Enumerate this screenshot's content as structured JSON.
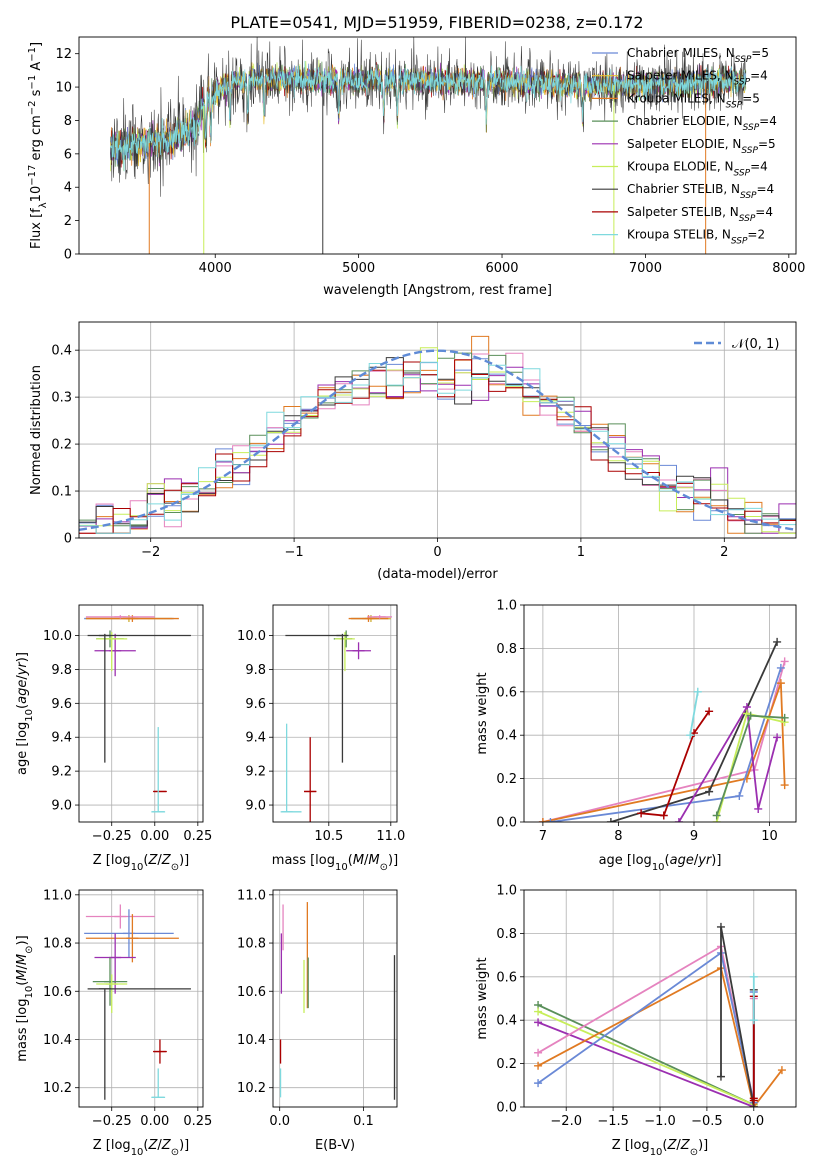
{
  "title": "PLATE=0541, MJD=51959, FIBERID=0238, z=0.172",
  "colors": {
    "Chabrier MILES": "#6a89d6",
    "Salpeter MILES": "#e8c034",
    "Kroupa MILES": "#e07a22",
    "Chabrier ELODIE": "#5a8f5a",
    "Salpeter ELODIE": "#9b2fb0",
    "Kroupa ELODIE": "#c7ee5a",
    "Chabrier STELIB": "#3a3a3a",
    "Salpeter STELIB": "#aa0000",
    "Kroupa STELIB": "#7fd9de",
    "pink": "#e583bf",
    "normal": "#5f8bd6"
  },
  "legend_top": [
    {
      "pre": "Chabrier MILES, N",
      "sub": "SSP",
      "post": "=5"
    },
    {
      "pre": "Salpeter MILES, N",
      "sub": "SSP",
      "post": "=4"
    },
    {
      "pre": "Kroupa MILES, N",
      "sub": "SSP",
      "post": "=5"
    },
    {
      "pre": "Chabrier ELODIE, N",
      "sub": "SSP",
      "post": "=4"
    },
    {
      "pre": "Salpeter ELODIE, N",
      "sub": "SSP",
      "post": "=5"
    },
    {
      "pre": "Kroupa ELODIE, N",
      "sub": "SSP",
      "post": "=4"
    },
    {
      "pre": "Chabrier STELIB, N",
      "sub": "SSP",
      "post": "=4"
    },
    {
      "pre": "Salpeter STELIB, N",
      "sub": "SSP",
      "post": "=4"
    },
    {
      "pre": "Kroupa STELIB, N",
      "sub": "SSP",
      "post": "=2"
    }
  ],
  "chart_data": [
    {
      "id": "spectrum",
      "type": "line",
      "title": "PLATE=0541, MJD=51959, FIBERID=0238, z=0.172",
      "xlabel": "wavelength [Angstrom, rest frame]",
      "ylabel_parts": [
        "Flux [f",
        "λ",
        "10",
        "−17",
        " erg cm",
        "−2",
        " s",
        "−1",
        " A",
        "−1",
        "]"
      ],
      "xlim": [
        3050,
        8050
      ],
      "ylim": [
        0,
        13
      ],
      "xticks": [
        4000,
        5000,
        6000,
        7000,
        8000
      ],
      "yticks": [
        0,
        2,
        4,
        6,
        8,
        10,
        12
      ],
      "grid": false,
      "legend_position": "top-right",
      "x_range_data": [
        3270,
        7700
      ],
      "continuum": [
        [
          3270,
          6.3
        ],
        [
          3500,
          6.6
        ],
        [
          3700,
          6.9
        ],
        [
          3850,
          7.6
        ],
        [
          3950,
          9.4
        ],
        [
          4100,
          10.3
        ],
        [
          4300,
          10.5
        ],
        [
          4600,
          10.4
        ],
        [
          5000,
          10.4
        ],
        [
          5500,
          10.4
        ],
        [
          6000,
          10.3
        ],
        [
          6500,
          10.1
        ],
        [
          7000,
          10.1
        ],
        [
          7500,
          10.3
        ],
        [
          7700,
          10.4
        ]
      ]
    },
    {
      "id": "residuals",
      "type": "bar",
      "xlabel": "(data-model)/error",
      "ylabel": "Normed distribution",
      "xlim": [
        -2.5,
        2.5
      ],
      "ylim": [
        0,
        0.46
      ],
      "xticks": [
        -2,
        -1,
        0,
        1,
        2
      ],
      "yticks": [
        0,
        0.1,
        0.2,
        0.3,
        0.4
      ],
      "grid": true,
      "legend": "𝒩(0, 1)",
      "legend_position": "top-right",
      "bins": 42
    },
    {
      "id": "age-vs-Z",
      "type": "scatter",
      "xlabel": "Z [log10(Z/Z⊙)]",
      "ylabel": "age  [log10(age/yr)]",
      "xlim": [
        -0.44,
        0.28
      ],
      "ylim": [
        8.9,
        10.18
      ],
      "xticks": [
        -0.25,
        0.0,
        0.25
      ],
      "xticklabels": [
        "−0.25",
        "0.00",
        "0.25"
      ],
      "yticks": [
        9.0,
        9.2,
        9.4,
        9.6,
        9.8,
        10.0
      ],
      "yticklabels": [
        "9.0",
        "9.2",
        "9.4",
        "9.6",
        "9.8",
        "10.0"
      ],
      "grid": true,
      "points": [
        {
          "model": "Chabrier MILES",
          "x": -0.15,
          "y": 10.1,
          "xe": [
            0.26,
            0.26
          ],
          "ye": [
            0.02,
            0.02
          ]
        },
        {
          "model": "Salpeter MILES",
          "x": -0.15,
          "y": 10.1,
          "xe": [
            0.25,
            0.25
          ],
          "ye": [
            0.02,
            0.02
          ]
        },
        {
          "model": "Kroupa MILES",
          "x": -0.13,
          "y": 10.1,
          "xe": [
            0.27,
            0.27
          ],
          "ye": [
            0.02,
            0.02
          ]
        },
        {
          "model": "Chabrier ELODIE",
          "x": -0.26,
          "y": 9.98,
          "xe": [
            0.08,
            0.08
          ],
          "ye": [
            0.05,
            0.05
          ]
        },
        {
          "model": "Salpeter ELODIE",
          "x": -0.23,
          "y": 9.91,
          "xe": [
            0.12,
            0.12
          ],
          "ye": [
            0.15,
            0.1
          ]
        },
        {
          "model": "Kroupa ELODIE",
          "x": -0.25,
          "y": 9.98,
          "xe": [
            0.09,
            0.09
          ],
          "ye": [
            0.19,
            0.04
          ]
        },
        {
          "model": "Chabrier STELIB",
          "x": -0.29,
          "y": 10.0,
          "xe": [
            0.1,
            0.5
          ],
          "ye": [
            0.75,
            0.01
          ]
        },
        {
          "model": "Salpeter STELIB",
          "x": 0.03,
          "y": 9.08,
          "xe": [
            0.04,
            0.04
          ],
          "ye": [
            0.0,
            0.0
          ]
        },
        {
          "model": "Kroupa STELIB",
          "x": 0.02,
          "y": 8.96,
          "xe": [
            0.04,
            0.04
          ],
          "ye": [
            0.0,
            0.5
          ]
        },
        {
          "model": "pink",
          "x": -0.2,
          "y": 10.11,
          "xe": [
            0.2,
            0.2
          ],
          "ye": [
            0.01,
            0.01
          ]
        }
      ]
    },
    {
      "id": "age-vs-mass",
      "type": "scatter",
      "xlabel": "mass [log10(M/M⊙)]",
      "ylabel": "",
      "xlim": [
        10.05,
        11.05
      ],
      "ylim": [
        8.9,
        10.18
      ],
      "xticks": [
        10.0,
        10.5,
        11.0
      ],
      "xticklabels": [
        "10.0",
        "10.5",
        "11.0"
      ],
      "yticks": [
        9.0,
        9.2,
        9.4,
        9.6,
        9.8,
        10.0
      ],
      "yticklabels": [
        "9.0",
        "9.2",
        "9.4",
        "9.6",
        "9.8",
        "10.0"
      ],
      "grid": true,
      "points": [
        {
          "model": "Chabrier MILES",
          "x": 10.84,
          "y": 10.1,
          "xe": [
            0.16,
            0.16
          ],
          "ye": [
            0.02,
            0.02
          ]
        },
        {
          "model": "Salpeter MILES",
          "x": 10.84,
          "y": 10.1,
          "xe": [
            0.16,
            0.16
          ],
          "ye": [
            0.02,
            0.02
          ]
        },
        {
          "model": "Kroupa MILES",
          "x": 10.82,
          "y": 10.1,
          "xe": [
            0.16,
            0.16
          ],
          "ye": [
            0.02,
            0.02
          ]
        },
        {
          "model": "Chabrier ELODIE",
          "x": 10.64,
          "y": 9.98,
          "xe": [
            0.1,
            0.05
          ],
          "ye": [
            0.05,
            0.05
          ]
        },
        {
          "model": "Salpeter ELODIE",
          "x": 10.74,
          "y": 9.91,
          "xe": [
            0.1,
            0.1
          ],
          "ye": [
            0.05,
            0.05
          ]
        },
        {
          "model": "Kroupa ELODIE",
          "x": 10.63,
          "y": 9.98,
          "xe": [
            0.08,
            0.08
          ],
          "ye": [
            0.19,
            0.04
          ]
        },
        {
          "model": "Chabrier STELIB",
          "x": 10.61,
          "y": 10.0,
          "xe": [
            0.46,
            0.0
          ],
          "ye": [
            0.75,
            0.01
          ]
        },
        {
          "model": "Salpeter STELIB",
          "x": 10.35,
          "y": 9.08,
          "xe": [
            0.05,
            0.05
          ],
          "ye": [
            0.18,
            0.32
          ]
        },
        {
          "model": "Kroupa STELIB",
          "x": 10.16,
          "y": 8.96,
          "xe": [
            0.04,
            0.12
          ],
          "ye": [
            0.0,
            0.52
          ]
        },
        {
          "model": "pink",
          "x": 10.91,
          "y": 10.11,
          "xe": [
            0.1,
            0.1
          ],
          "ye": [
            0.01,
            0.01
          ]
        }
      ]
    },
    {
      "id": "weight-vs-age",
      "type": "line",
      "xlabel": "age  [log10(age/yr)]",
      "ylabel": "mass weight",
      "xlim": [
        6.75,
        10.35
      ],
      "ylim": [
        0,
        1.0
      ],
      "xticks": [
        7,
        8,
        9,
        10
      ],
      "yticks": [
        0,
        0.2,
        0.4,
        0.6,
        0.8,
        1.0
      ],
      "yticklabels": [
        "0.0",
        "0.2",
        "0.4",
        "0.6",
        "0.8",
        "1.0"
      ],
      "grid": true,
      "series": [
        {
          "model": "pink",
          "x": [
            7.0,
            9.8,
            10.2
          ],
          "y": [
            0.0,
            0.24,
            0.74
          ]
        },
        {
          "model": "Kroupa MILES",
          "x": [
            7.0,
            9.7,
            10.15,
            10.2
          ],
          "y": [
            0.0,
            0.2,
            0.64,
            0.17
          ]
        },
        {
          "model": "Chabrier MILES",
          "x": [
            7.1,
            9.6,
            10.15
          ],
          "y": [
            0.0,
            0.12,
            0.71
          ]
        },
        {
          "model": "Chabrier STELIB",
          "x": [
            7.9,
            9.2,
            10.1
          ],
          "y": [
            0.0,
            0.14,
            0.83
          ]
        },
        {
          "model": "Salpeter STELIB",
          "x": [
            8.3,
            8.6,
            9.0,
            9.2
          ],
          "y": [
            0.04,
            0.03,
            0.41,
            0.51
          ]
        },
        {
          "model": "Kroupa STELIB",
          "x": [
            8.95,
            9.05
          ],
          "y": [
            0.4,
            0.6
          ]
        },
        {
          "model": "Salpeter ELODIE",
          "x": [
            8.8,
            9.7,
            9.85,
            10.1
          ],
          "y": [
            0.0,
            0.53,
            0.06,
            0.39
          ]
        },
        {
          "model": "Kroupa ELODIE",
          "x": [
            9.3,
            9.7,
            10.2
          ],
          "y": [
            0.0,
            0.5,
            0.46
          ]
        },
        {
          "model": "Chabrier ELODIE",
          "x": [
            9.3,
            9.75,
            10.2
          ],
          "y": [
            0.03,
            0.49,
            0.48
          ]
        }
      ]
    },
    {
      "id": "mass-vs-Z",
      "type": "scatter",
      "xlabel": "Z [log10(Z/Z⊙)]",
      "ylabel": "mass [log10(M/M⊙)]",
      "xlim": [
        -0.44,
        0.28
      ],
      "ylim": [
        10.12,
        11.02
      ],
      "xticks": [
        -0.25,
        0.0,
        0.25
      ],
      "xticklabels": [
        "−0.25",
        "0.00",
        "0.25"
      ],
      "yticks": [
        10.2,
        10.4,
        10.6,
        10.8,
        11.0
      ],
      "yticklabels": [
        "10.2",
        "10.4",
        "10.6",
        "10.8",
        "11.0"
      ],
      "grid": true,
      "points": [
        {
          "model": "pink",
          "x": -0.2,
          "y": 10.91,
          "xe": [
            0.2,
            0.2
          ],
          "ye": [
            0.05,
            0.05
          ]
        },
        {
          "model": "Chabrier MILES",
          "x": -0.15,
          "y": 10.84,
          "xe": [
            0.26,
            0.26
          ],
          "ye": [
            0.1,
            0.1
          ]
        },
        {
          "model": "Kroupa MILES",
          "x": -0.13,
          "y": 10.82,
          "xe": [
            0.27,
            0.27
          ],
          "ye": [
            0.1,
            0.1
          ]
        },
        {
          "model": "Salpeter ELODIE",
          "x": -0.23,
          "y": 10.74,
          "xe": [
            0.12,
            0.12
          ],
          "ye": [
            0.15,
            0.1
          ]
        },
        {
          "model": "Chabrier ELODIE",
          "x": -0.26,
          "y": 10.64,
          "xe": [
            0.1,
            0.1
          ],
          "ye": [
            0.1,
            0.1
          ]
        },
        {
          "model": "Kroupa ELODIE",
          "x": -0.25,
          "y": 10.63,
          "xe": [
            0.09,
            0.09
          ],
          "ye": [
            0.12,
            0.04
          ]
        },
        {
          "model": "Chabrier STELIB",
          "x": -0.29,
          "y": 10.61,
          "xe": [
            0.1,
            0.5
          ],
          "ye": [
            0.46,
            0.0
          ]
        },
        {
          "model": "Salpeter STELIB",
          "x": 0.03,
          "y": 10.35,
          "xe": [
            0.04,
            0.04
          ],
          "ye": [
            0.05,
            0.05
          ]
        },
        {
          "model": "Kroupa STELIB",
          "x": 0.02,
          "y": 10.16,
          "xe": [
            0.04,
            0.04
          ],
          "ye": [
            0.0,
            0.12
          ]
        }
      ]
    },
    {
      "id": "mass-vs-EBV",
      "type": "scatter",
      "xlabel": "E(B-V)",
      "ylabel": "",
      "xlim": [
        -0.008,
        0.14
      ],
      "ylim": [
        10.12,
        11.02
      ],
      "xticks": [
        0.0,
        0.1
      ],
      "xticklabels": [
        "0.0",
        "0.1"
      ],
      "yticks": [
        10.2,
        10.4,
        10.6,
        10.8,
        11.0
      ],
      "yticklabels": [
        "10.2",
        "10.4",
        "10.6",
        "10.8",
        "11.0"
      ],
      "grid": true,
      "points": [
        {
          "model": "pink",
          "x": 0.004,
          "y": 10.91,
          "xe": [
            0,
            0
          ],
          "ye": [
            0.14,
            0.05
          ]
        },
        {
          "model": "Kroupa MILES",
          "x": 0.033,
          "y": 10.82,
          "xe": [
            0,
            0
          ],
          "ye": [
            0.29,
            0.15
          ]
        },
        {
          "model": "Salpeter ELODIE",
          "x": 0.002,
          "y": 10.74,
          "xe": [
            0,
            0
          ],
          "ye": [
            0.15,
            0.1
          ]
        },
        {
          "model": "Kroupa ELODIE",
          "x": 0.029,
          "y": 10.63,
          "xe": [
            0,
            0
          ],
          "ye": [
            0.12,
            0.1
          ]
        },
        {
          "model": "Chabrier ELODIE",
          "x": 0.034,
          "y": 10.64,
          "xe": [
            0,
            0
          ],
          "ye": [
            0.11,
            0.1
          ]
        },
        {
          "model": "Chabrier STELIB",
          "x": 0.137,
          "y": 10.61,
          "xe": [
            0,
            0
          ],
          "ye": [
            0.46,
            0.14
          ]
        },
        {
          "model": "Salpeter STELIB",
          "x": 0.001,
          "y": 10.35,
          "xe": [
            0,
            0
          ],
          "ye": [
            0.05,
            0.05
          ]
        },
        {
          "model": "Kroupa STELIB",
          "x": 0.001,
          "y": 10.2,
          "xe": [
            0,
            0
          ],
          "ye": [
            0.04,
            0.08
          ]
        }
      ]
    },
    {
      "id": "weight-vs-Z",
      "type": "line",
      "xlabel": "Z [log10(Z/Z⊙)]",
      "ylabel": "mass weight",
      "xlim": [
        -2.45,
        0.45
      ],
      "ylim": [
        0,
        1.0
      ],
      "xticks": [
        -2.0,
        -1.5,
        -1.0,
        -0.5,
        0.0
      ],
      "xticklabels": [
        "−2.0",
        "−1.5",
        "−1.0",
        "−0.5",
        "0.0"
      ],
      "yticks": [
        0,
        0.2,
        0.4,
        0.6,
        0.8,
        1.0
      ],
      "yticklabels": [
        "0.0",
        "0.2",
        "0.4",
        "0.6",
        "0.8",
        "1.0"
      ],
      "grid": true,
      "series": [
        {
          "model": "Chabrier ELODIE",
          "x": [
            -2.3,
            0.0
          ],
          "y": [
            0.47,
            0.01
          ]
        },
        {
          "model": "Kroupa ELODIE",
          "x": [
            -2.3,
            0.0
          ],
          "y": [
            0.44,
            0.01
          ]
        },
        {
          "model": "Salpeter ELODIE",
          "x": [
            -2.3,
            0.0
          ],
          "y": [
            0.39,
            0.0
          ]
        },
        {
          "model": "pink",
          "x": [
            -2.3,
            -0.35,
            0.0,
            0.0
          ],
          "y": [
            0.25,
            0.74,
            0.02,
            0.5
          ]
        },
        {
          "model": "Kroupa MILES",
          "x": [
            -2.3,
            -0.35,
            0.0,
            0.3
          ],
          "y": [
            0.19,
            0.64,
            0.0,
            0.17
          ]
        },
        {
          "model": "Chabrier MILES",
          "x": [
            -2.3,
            -0.35,
            0.0,
            0.0
          ],
          "y": [
            0.11,
            0.71,
            0.02,
            0.53
          ]
        },
        {
          "model": "Chabrier STELIB",
          "x": [
            -0.35,
            -0.35,
            0.0,
            0.0
          ],
          "y": [
            0.14,
            0.83,
            0.0,
            0.54
          ]
        },
        {
          "model": "Salpeter STELIB",
          "x": [
            0.0,
            0.0,
            0.0
          ],
          "y": [
            0.03,
            0.51,
            0.04
          ]
        },
        {
          "model": "Kroupa STELIB",
          "x": [
            0.0,
            0.0
          ],
          "y": [
            0.4,
            0.6
          ]
        }
      ]
    }
  ]
}
